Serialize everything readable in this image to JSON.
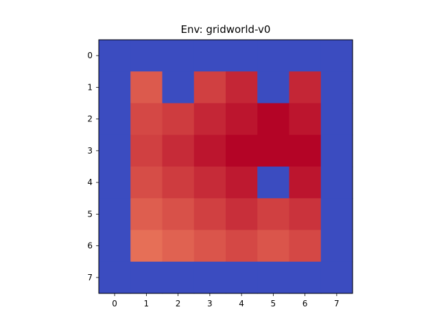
{
  "chart_data": {
    "type": "heatmap",
    "title": "Env: gridworld-v0",
    "xlabel": "",
    "ylabel": "",
    "x_ticks": [
      "0",
      "1",
      "2",
      "3",
      "4",
      "5",
      "6",
      "7"
    ],
    "y_ticks": [
      "0",
      "1",
      "2",
      "3",
      "4",
      "5",
      "6",
      "7"
    ],
    "colormap": "coolwarm",
    "grid": false,
    "legend": "none",
    "colors": {
      "wall": "#3b4cc0",
      "max": "#b40426",
      "spine": "#000000",
      "background": "#ffffff"
    },
    "note_values": "cell intensity normalized 0-1 (0 = blue wall)",
    "values": [
      [
        0,
        0,
        0,
        0,
        0,
        0,
        0,
        0
      ],
      [
        0,
        0.8,
        0,
        0.86,
        0.92,
        0,
        0.92,
        0
      ],
      [
        0,
        0.84,
        0.87,
        0.92,
        0.96,
        1.0,
        0.96,
        0
      ],
      [
        0,
        0.86,
        0.91,
        0.96,
        1.0,
        1.0,
        1.0,
        0
      ],
      [
        0,
        0.83,
        0.87,
        0.91,
        0.95,
        0,
        0.96,
        0
      ],
      [
        0,
        0.79,
        0.82,
        0.86,
        0.9,
        0.86,
        0.89,
        0
      ],
      [
        0,
        0.75,
        0.78,
        0.81,
        0.84,
        0.81,
        0.84,
        0
      ],
      [
        0,
        0,
        0,
        0,
        0,
        0,
        0,
        0
      ]
    ]
  }
}
